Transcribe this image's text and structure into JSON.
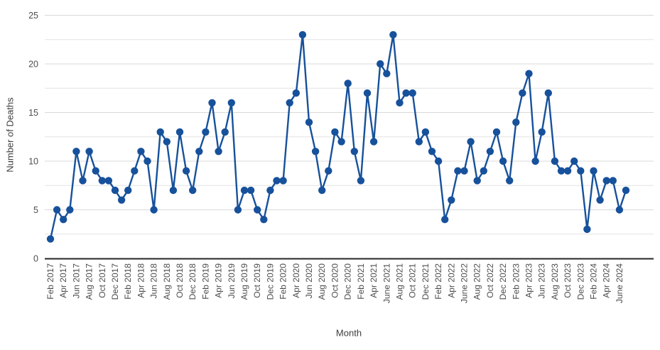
{
  "page": {
    "background": "#ffffff"
  },
  "chart_data": {
    "type": "line",
    "title": "",
    "xlabel": "Month",
    "ylabel": "Number of Deaths",
    "ylim": [
      0,
      25
    ],
    "yticks": [
      0,
      5,
      10,
      15,
      20,
      25
    ],
    "minor_gridline_step": 2.5,
    "grid": "horizontal",
    "legend_position": "none",
    "line_color": "#17519b",
    "marker": "circle",
    "tick_label_color": "#4d4d4d",
    "gridline_color": "#d9d9d9",
    "minor_gridline_color": "#e2e2e2",
    "axis_line_color": "#262626",
    "x_tick_every": 2,
    "x_tick_labels": [
      "Feb 2017",
      "Apr 2017",
      "Jun 2017",
      "Aug 2017",
      "Oct 2017",
      "Dec 2017",
      "Feb 2018",
      "Apr 2018",
      "Jun 2018",
      "Aug 2018",
      "Oct 2018",
      "Dec 2018",
      "Feb 2019",
      "Apr 2019",
      "Jun 2019",
      "Aug 2019",
      "Oct 2019",
      "Dec 2019",
      "Feb 2020",
      "Apr 2020",
      "Jun 2020",
      "Aug 2020",
      "Oct 2020",
      "Dec 2020",
      "Feb 2021",
      "Apr 2021",
      "June 2021",
      "Aug 2021",
      "Oct 2021",
      "Dec 2021",
      "Feb 2022",
      "Apr 2022",
      "June 2022",
      "Aug 2022",
      "Oct 2022",
      "Dec 2022",
      "Feb 2023",
      "Apr 2023",
      "Jun 2023",
      "Aug 2023",
      "Oct 2023",
      "Dec 2023",
      "Feb 2024",
      "Apr 2024",
      "June 2024"
    ],
    "x": [
      "Feb 2017",
      "Mar 2017",
      "Apr 2017",
      "May 2017",
      "Jun 2017",
      "Jul 2017",
      "Aug 2017",
      "Sep 2017",
      "Oct 2017",
      "Nov 2017",
      "Dec 2017",
      "Jan 2018",
      "Feb 2018",
      "Mar 2018",
      "Apr 2018",
      "May 2018",
      "Jun 2018",
      "Jul 2018",
      "Aug 2018",
      "Sep 2018",
      "Oct 2018",
      "Nov 2018",
      "Dec 2018",
      "Jan 2019",
      "Feb 2019",
      "Mar 2019",
      "Apr 2019",
      "May 2019",
      "Jun 2019",
      "Jul 2019",
      "Aug 2019",
      "Sep 2019",
      "Oct 2019",
      "Nov 2019",
      "Dec 2019",
      "Jan 2020",
      "Feb 2020",
      "Mar 2020",
      "Apr 2020",
      "May 2020",
      "Jun 2020",
      "Jul 2020",
      "Aug 2020",
      "Sep 2020",
      "Oct 2020",
      "Nov 2020",
      "Dec 2020",
      "Jan 2021",
      "Feb 2021",
      "Mar 2021",
      "Apr 2021",
      "May 2021",
      "Jun 2021",
      "Jul 2021",
      "Aug 2021",
      "Sep 2021",
      "Oct 2021",
      "Nov 2021",
      "Dec 2021",
      "Jan 2022",
      "Feb 2022",
      "Mar 2022",
      "Apr 2022",
      "May 2022",
      "Jun 2022",
      "Jul 2022",
      "Aug 2022",
      "Sep 2022",
      "Oct 2022",
      "Nov 2022",
      "Dec 2022",
      "Jan 2023",
      "Feb 2023",
      "Mar 2023",
      "Apr 2023",
      "May 2023",
      "Jun 2023",
      "Jul 2023",
      "Aug 2023",
      "Sep 2023",
      "Oct 2023",
      "Nov 2023",
      "Dec 2023",
      "Jan 2024",
      "Feb 2024",
      "Mar 2024",
      "Apr 2024",
      "May 2024",
      "Jun 2024",
      "Jul 2024"
    ],
    "series": [
      {
        "name": "Number of Deaths",
        "values": [
          2,
          5,
          4,
          5,
          11,
          8,
          11,
          9,
          8,
          8,
          7,
          6,
          7,
          9,
          11,
          10,
          5,
          13,
          12,
          7,
          13,
          9,
          7,
          11,
          13,
          16,
          11,
          13,
          16,
          5,
          7,
          7,
          5,
          4,
          7,
          8,
          8,
          16,
          17,
          23,
          14,
          11,
          7,
          9,
          13,
          12,
          18,
          11,
          8,
          17,
          12,
          20,
          19,
          23,
          16,
          17,
          17,
          12,
          13,
          11,
          10,
          4,
          6,
          9,
          9,
          12,
          8,
          9,
          11,
          13,
          10,
          8,
          14,
          17,
          19,
          10,
          13,
          17,
          10,
          9,
          9,
          10,
          9,
          3,
          9,
          6,
          8,
          8,
          5,
          7
        ]
      }
    ]
  }
}
